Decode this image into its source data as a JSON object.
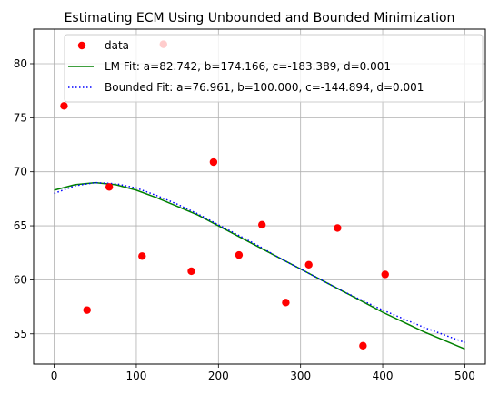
{
  "chart_data": {
    "type": "scatter",
    "title": "Estimating ECM Using Unbounded and Bounded Minimization",
    "xlabel": "",
    "ylabel": "",
    "xlim": [
      -25,
      525
    ],
    "ylim": [
      52.2,
      83.2
    ],
    "xticks": [
      0,
      100,
      200,
      300,
      400,
      500
    ],
    "yticks": [
      55,
      60,
      65,
      70,
      75,
      80
    ],
    "grid": true,
    "legend_position": "top",
    "series": [
      {
        "name": "data",
        "kind": "scatter",
        "color": "#ff0000",
        "points": [
          {
            "x": 12,
            "y": 76.1
          },
          {
            "x": 40,
            "y": 57.2
          },
          {
            "x": 67,
            "y": 68.6
          },
          {
            "x": 107,
            "y": 62.2
          },
          {
            "x": 133,
            "y": 81.8
          },
          {
            "x": 167,
            "y": 60.8
          },
          {
            "x": 194,
            "y": 70.9
          },
          {
            "x": 225,
            "y": 62.3
          },
          {
            "x": 253,
            "y": 65.1
          },
          {
            "x": 282,
            "y": 57.9
          },
          {
            "x": 310,
            "y": 61.4
          },
          {
            "x": 345,
            "y": 64.8
          },
          {
            "x": 376,
            "y": 53.9
          },
          {
            "x": 403,
            "y": 60.5
          }
        ]
      },
      {
        "name": "LM Fit: a=82.742, b=174.166, c=-183.389, d=0.001",
        "kind": "line",
        "color": "#008000",
        "style": "solid",
        "points": [
          {
            "x": 0,
            "y": 68.3
          },
          {
            "x": 25,
            "y": 68.8
          },
          {
            "x": 50,
            "y": 69.0
          },
          {
            "x": 75,
            "y": 68.8
          },
          {
            "x": 100,
            "y": 68.3
          },
          {
            "x": 125,
            "y": 67.6
          },
          {
            "x": 150,
            "y": 66.8
          },
          {
            "x": 175,
            "y": 66.0
          },
          {
            "x": 200,
            "y": 65.0
          },
          {
            "x": 225,
            "y": 64.0
          },
          {
            "x": 250,
            "y": 63.0
          },
          {
            "x": 275,
            "y": 62.0
          },
          {
            "x": 300,
            "y": 61.0
          },
          {
            "x": 325,
            "y": 60.0
          },
          {
            "x": 350,
            "y": 59.0
          },
          {
            "x": 375,
            "y": 58.0
          },
          {
            "x": 400,
            "y": 57.0
          },
          {
            "x": 425,
            "y": 56.1
          },
          {
            "x": 450,
            "y": 55.2
          },
          {
            "x": 475,
            "y": 54.4
          },
          {
            "x": 500,
            "y": 53.6
          }
        ]
      },
      {
        "name": "Bounded Fit: a=76.961, b=100.000, c=-144.894, d=0.001",
        "kind": "line",
        "color": "#0000ff",
        "style": "dotted",
        "points": [
          {
            "x": 0,
            "y": 68.0
          },
          {
            "x": 25,
            "y": 68.7
          },
          {
            "x": 50,
            "y": 69.0
          },
          {
            "x": 75,
            "y": 68.9
          },
          {
            "x": 100,
            "y": 68.5
          },
          {
            "x": 125,
            "y": 67.8
          },
          {
            "x": 150,
            "y": 67.0
          },
          {
            "x": 175,
            "y": 66.1
          },
          {
            "x": 200,
            "y": 65.1
          },
          {
            "x": 225,
            "y": 64.1
          },
          {
            "x": 250,
            "y": 63.1
          },
          {
            "x": 275,
            "y": 62.0
          },
          {
            "x": 300,
            "y": 61.0
          },
          {
            "x": 325,
            "y": 60.0
          },
          {
            "x": 350,
            "y": 59.0
          },
          {
            "x": 375,
            "y": 58.1
          },
          {
            "x": 400,
            "y": 57.2
          },
          {
            "x": 425,
            "y": 56.4
          },
          {
            "x": 450,
            "y": 55.6
          },
          {
            "x": 475,
            "y": 54.9
          },
          {
            "x": 500,
            "y": 54.2
          }
        ]
      }
    ]
  }
}
